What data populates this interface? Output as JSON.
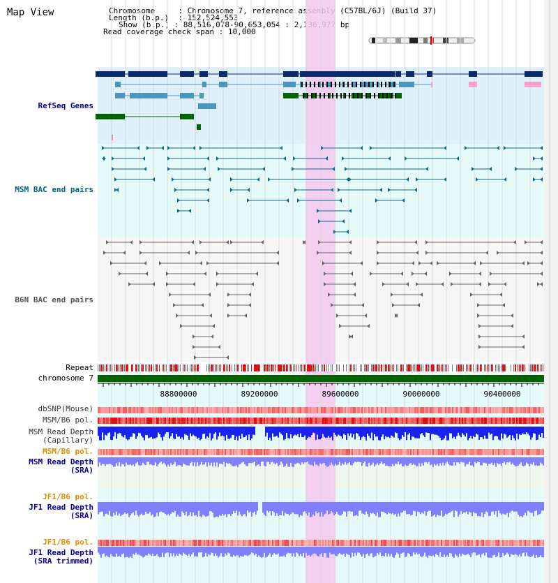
{
  "app": {
    "title": "Map View"
  },
  "info": {
    "chromosome_label": "Chromosome",
    "chromosome_value": "Chromosome 7, reference assembly (C57BL/6J) (Build 37)",
    "length_label": "Length (b.p.)",
    "length_value": "152,524,553",
    "show_label": "Show (b.p.)",
    "show_value": "88,516,078-90,653,054 : 2,136,977 bp",
    "coverage_label": "Read coverage check span",
    "coverage_value": "10,000"
  },
  "tracks": {
    "refseq": "RefSeq Genes",
    "msm_bac": "MSM BAC end pairs",
    "b6n_bac": "B6N BAC end pairs",
    "repeat": "Repeat",
    "chromosome": "chromosome 7",
    "dbsnp": "dbSNP(Mouse)",
    "msm_b6_pol_1": "MSM/B6 pol.",
    "msm_read_depth_cap": "MSM Read Depth\n(Capillary)",
    "msm_b6_pol_2": "MSM/B6 pol.",
    "msm_read_depth_sra": "MSM Read Depth\n(SRA)",
    "jf1_b6_pol_1": "JF1/B6 pol.",
    "jf1_read_depth_sra": "JF1 Read Depth\n(SRA)",
    "jf1_b6_pol_2": "JF1/B6 pol.",
    "jf1_read_depth_trim": "JF1 Read Depth\n(SRA trimmed)"
  },
  "axis": {
    "ticks": [
      "88800000",
      "89200000",
      "89600000",
      "90000000",
      "90400000"
    ]
  },
  "colors": {
    "refseq_dark": "#0a2a6a",
    "refseq_light": "#4a96c0",
    "refseq_green": "#006400",
    "refseq_pink": "#f7a0c8",
    "msm_bac": "#0e6a8a",
    "b6n_bac": "#666666",
    "highlight": "#f5c8ee",
    "depth_cap": "#1a22ee",
    "depth_sra": "#8080ff",
    "label_blue": "#000099",
    "label_teal": "#006680",
    "label_orange": "#e09000"
  }
}
